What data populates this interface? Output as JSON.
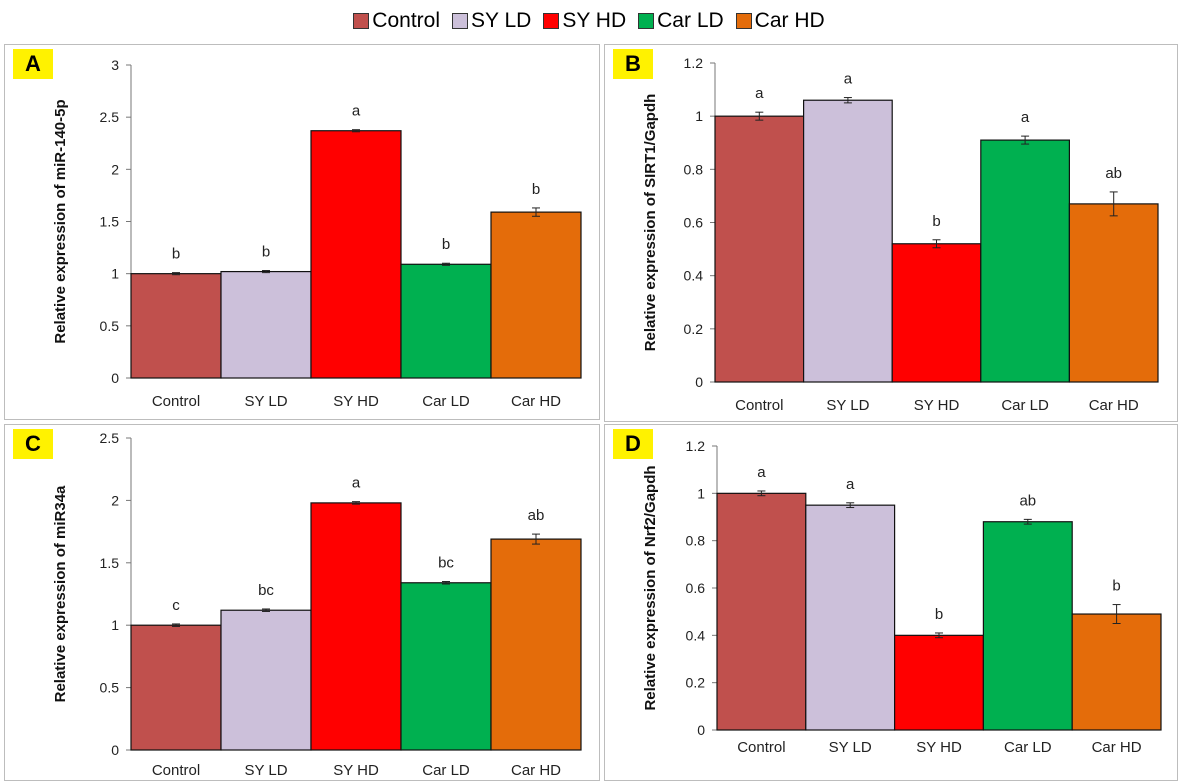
{
  "legend": [
    {
      "label": "Control",
      "color": "#c0504d"
    },
    {
      "label": "SY LD",
      "color": "#ccc0da"
    },
    {
      "label": "SY HD",
      "color": "#ff0000"
    },
    {
      "label": "Car LD",
      "color": "#00b050"
    },
    {
      "label": "Car HD",
      "color": "#e46c0a"
    }
  ],
  "chart_data": [
    {
      "panel": "A",
      "type": "bar",
      "categories": [
        "Control",
        "SY LD",
        "SY HD",
        "Car LD",
        "Car HD"
      ],
      "values": [
        1.0,
        1.02,
        2.37,
        1.09,
        1.59
      ],
      "errors": [
        0.01,
        0.01,
        0.01,
        0.01,
        0.04
      ],
      "significance": [
        "b",
        "b",
        "a",
        "b",
        "b"
      ],
      "ylabel": "Relative expression of miR-140-5p",
      "ylim": [
        0,
        3
      ],
      "yticks": [
        "0",
        "0.5",
        "1",
        "1.5",
        "2",
        "2.5",
        "3"
      ],
      "ytick_values": [
        0,
        0.5,
        1,
        1.5,
        2,
        2.5,
        3
      ],
      "colors": [
        "#c0504d",
        "#ccc0da",
        "#ff0000",
        "#00b050",
        "#e46c0a"
      ]
    },
    {
      "panel": "B",
      "type": "bar",
      "categories": [
        "Control",
        "SY LD",
        "SY HD",
        "Car LD",
        "Car HD"
      ],
      "values": [
        1.0,
        1.06,
        0.52,
        0.91,
        0.67
      ],
      "errors": [
        0.015,
        0.01,
        0.015,
        0.015,
        0.045
      ],
      "significance": [
        "a",
        "a",
        "b",
        "a",
        "ab"
      ],
      "ylabel": "Relative expression of SIRT1/Gapdh",
      "ylim": [
        0,
        1.2
      ],
      "yticks": [
        "0",
        "0.2",
        "0.4",
        "0.6",
        "0.8",
        "1",
        "1.2"
      ],
      "ytick_values": [
        0,
        0.2,
        0.4,
        0.6,
        0.8,
        1.0,
        1.2
      ],
      "colors": [
        "#c0504d",
        "#ccc0da",
        "#ff0000",
        "#00b050",
        "#e46c0a"
      ]
    },
    {
      "panel": "C",
      "type": "bar",
      "categories": [
        "Control",
        "SY LD",
        "SY HD",
        "Car LD",
        "Car HD"
      ],
      "values": [
        1.0,
        1.12,
        1.98,
        1.34,
        1.69
      ],
      "errors": [
        0.01,
        0.01,
        0.01,
        0.01,
        0.04
      ],
      "significance": [
        "c",
        "bc",
        "a",
        "bc",
        "ab"
      ],
      "ylabel": "Relative expression of miR34a",
      "ylim": [
        0,
        2.5
      ],
      "yticks": [
        "0",
        "0.5",
        "1",
        "1.5",
        "2",
        "2.5"
      ],
      "ytick_values": [
        0,
        0.5,
        1,
        1.5,
        2,
        2.5
      ],
      "colors": [
        "#c0504d",
        "#ccc0da",
        "#ff0000",
        "#00b050",
        "#e46c0a"
      ]
    },
    {
      "panel": "D",
      "type": "bar",
      "categories": [
        "Control",
        "SY LD",
        "SY HD",
        "Car LD",
        "Car HD"
      ],
      "values": [
        1.0,
        0.95,
        0.4,
        0.88,
        0.49
      ],
      "errors": [
        0.01,
        0.01,
        0.01,
        0.01,
        0.04
      ],
      "significance": [
        "a",
        "a",
        "b",
        "ab",
        "b"
      ],
      "ylabel": "Relative expression of Nrf2/Gapdh",
      "ylim": [
        0,
        1.2
      ],
      "yticks": [
        "0",
        "0.2",
        "0.4",
        "0.6",
        "0.8",
        "1",
        "1.2"
      ],
      "ytick_values": [
        0,
        0.2,
        0.4,
        0.6,
        0.8,
        1.0,
        1.2
      ],
      "colors": [
        "#c0504d",
        "#ccc0da",
        "#ff0000",
        "#00b050",
        "#e46c0a"
      ]
    }
  ]
}
